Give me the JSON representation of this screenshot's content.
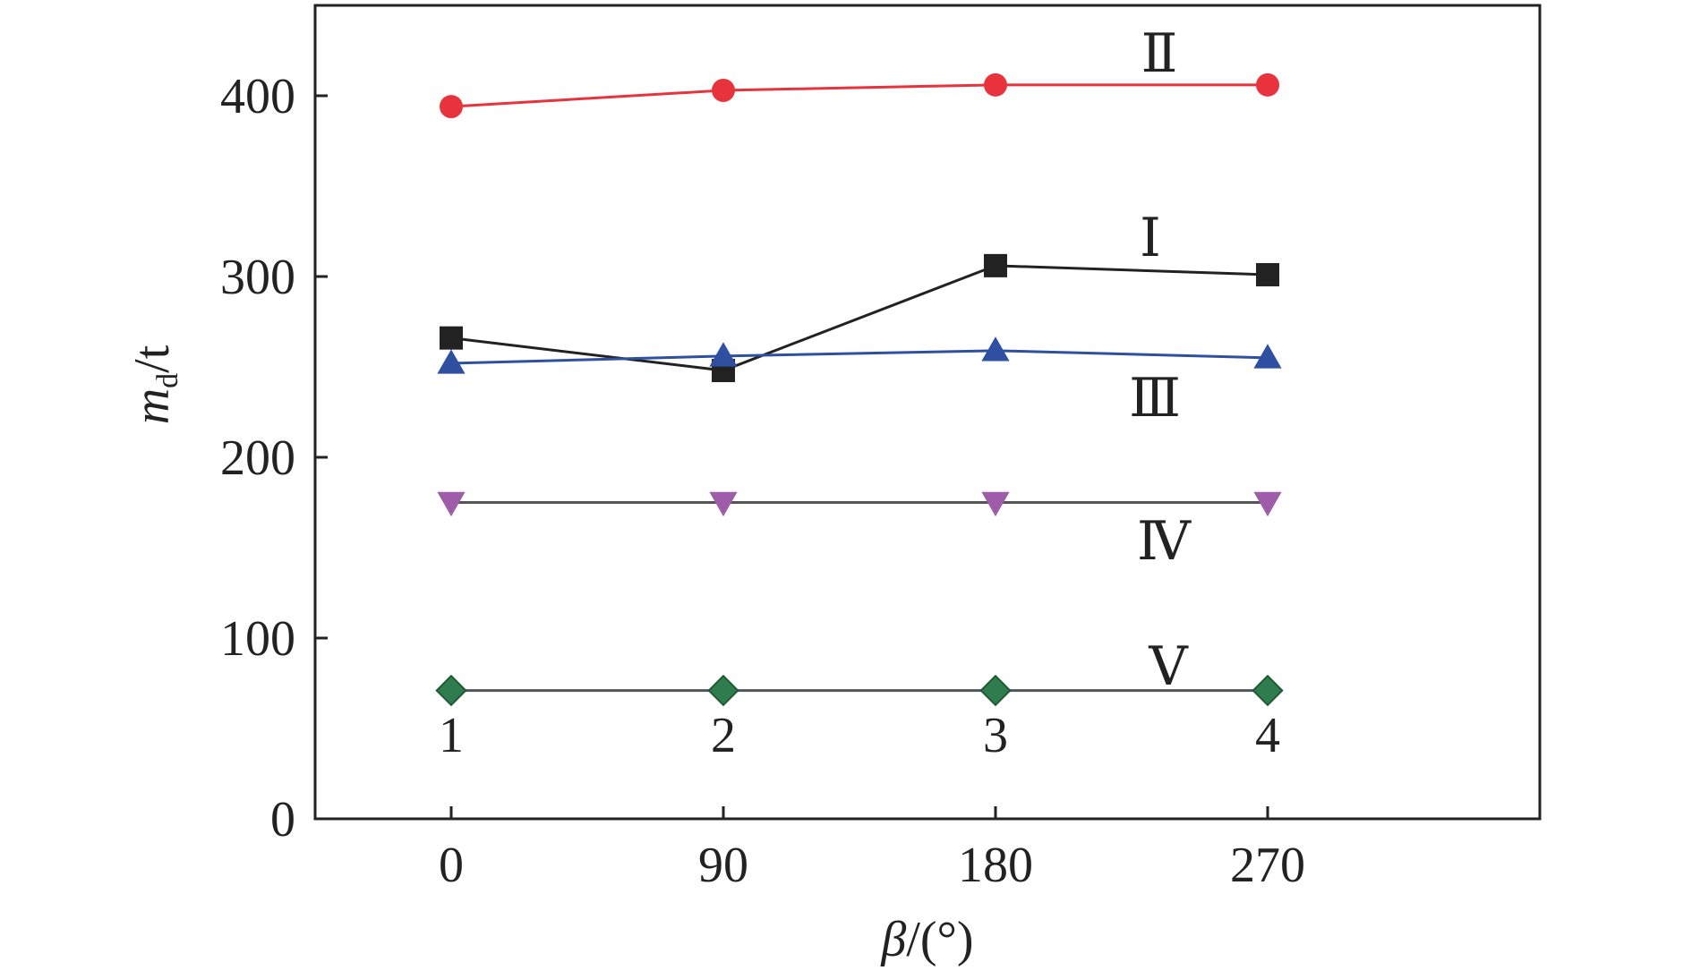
{
  "chart_data": {
    "type": "line",
    "xlabel": {
      "symbol": "β",
      "unit": "/(°)"
    },
    "ylabel": {
      "symbol": "m",
      "subscript": "d",
      "unit": "/t"
    },
    "x": [
      0,
      90,
      180,
      270
    ],
    "xlim": [
      -45,
      360
    ],
    "ylim": [
      0,
      450
    ],
    "xticks": [
      "0",
      "90",
      "180",
      "270"
    ],
    "yticks": [
      "0",
      "100",
      "200",
      "300",
      "400"
    ],
    "grid": false,
    "legend": "none",
    "point_labels": [
      "1",
      "2",
      "3",
      "4"
    ],
    "series": [
      {
        "name": "Ⅰ",
        "values": [
          266,
          248,
          306,
          301
        ],
        "color": "#222222",
        "marker": "square"
      },
      {
        "name": "Ⅱ",
        "values": [
          394,
          403,
          406,
          406
        ],
        "color": "#e8323c",
        "marker": "circle"
      },
      {
        "name": "Ⅲ",
        "values": [
          252,
          256,
          259,
          255
        ],
        "color": "#2f4fa0",
        "marker": "triangle-up"
      },
      {
        "name": "Ⅳ",
        "values": [
          175,
          175,
          175,
          175
        ],
        "color": "#a05ca8",
        "marker": "triangle-down"
      },
      {
        "name": "Ⅴ",
        "values": [
          71,
          71,
          71,
          71
        ],
        "color": "#2f7d4f",
        "marker": "diamond"
      }
    ]
  }
}
